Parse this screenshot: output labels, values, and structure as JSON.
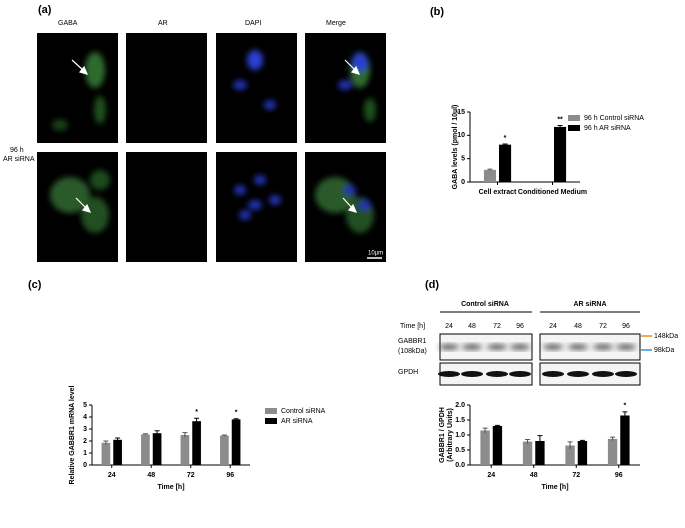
{
  "figure": {
    "panel_labels": [
      "(a)",
      "(b)",
      "(c)",
      "(d)"
    ],
    "micrograph_columns": [
      "GABA",
      "AR",
      "DAPI",
      "Merge"
    ],
    "micrograph_row_label": [
      "96 h",
      "AR siRNA"
    ],
    "scale_bar": "10µm",
    "blot": {
      "groups": [
        "Control siRNA",
        "AR siRNA"
      ],
      "time_label": "Time [h]",
      "times": [
        "24",
        "48",
        "72",
        "96",
        "24",
        "48",
        "72",
        "96"
      ],
      "rows": [
        [
          "GABBR1",
          "(108kDa)"
        ],
        [
          "GPDH"
        ]
      ],
      "markers": [
        "148kDa",
        "98kDa"
      ]
    }
  },
  "chart_data": [
    {
      "type": "bar",
      "ylabel": "GABA levels (pmol / 10µl)",
      "categories": [
        "Cell extract",
        "Conditioned Medium"
      ],
      "series": [
        {
          "name": "96 h Control siRNA",
          "color": "#8c8c8c",
          "values": [
            2.6,
            0
          ],
          "errors": [
            0.15,
            0
          ]
        },
        {
          "name": "96 h AR siRNA",
          "color": "#000000",
          "values": [
            8.0,
            11.8
          ],
          "errors": [
            0.15,
            0.3
          ],
          "annotations": [
            {
              "text": "*",
              "category": "Cell extract"
            },
            {
              "text": "**",
              "category": "Conditioned Medium"
            }
          ]
        }
      ],
      "ylim": [
        0,
        15
      ],
      "yticks": [
        0,
        5,
        10,
        15
      ]
    },
    {
      "type": "bar",
      "ylabel": "Relative GABBR1 mRNA level",
      "xlabel": "Time [h]",
      "categories": [
        "24",
        "48",
        "72",
        "96"
      ],
      "series": [
        {
          "name": "Control siRNA",
          "color": "#8c8c8c",
          "values": [
            1.85,
            2.55,
            2.5,
            2.45
          ],
          "errors": [
            0.15,
            0.05,
            0.2,
            0.05
          ]
        },
        {
          "name": "AR siRNA",
          "color": "#000000",
          "values": [
            2.1,
            2.65,
            3.65,
            3.8
          ],
          "errors": [
            0.15,
            0.2,
            0.25,
            0.05
          ],
          "annotations": [
            {
              "text": "*",
              "category": "72"
            },
            {
              "text": "*",
              "category": "96"
            }
          ]
        }
      ],
      "ylim": [
        0,
        5
      ],
      "yticks": [
        0,
        1,
        2,
        3,
        4,
        5
      ]
    },
    {
      "type": "bar",
      "ylabel": [
        "GABBR1 / GPDH",
        "(Arbitrary Units)"
      ],
      "xlabel": "Time [h]",
      "categories": [
        "24",
        "48",
        "72",
        "96"
      ],
      "series": [
        {
          "color": "#8c8c8c",
          "values": [
            1.15,
            0.78,
            0.65,
            0.87
          ],
          "errors": [
            0.08,
            0.07,
            0.12,
            0.06
          ]
        },
        {
          "color": "#000000",
          "values": [
            1.3,
            0.8,
            0.8,
            1.65
          ],
          "errors": [
            0.02,
            0.18,
            0.02,
            0.12
          ],
          "annotations": [
            {
              "text": "*",
              "category": "96"
            }
          ]
        }
      ],
      "ylim": [
        0,
        2
      ],
      "yticks": [
        {
          "value": 0,
          "label": "0.0"
        },
        0.5,
        {
          "value": 1,
          "label": "1.0"
        },
        1.5,
        {
          "value": 2,
          "label": "2.0"
        }
      ]
    }
  ]
}
